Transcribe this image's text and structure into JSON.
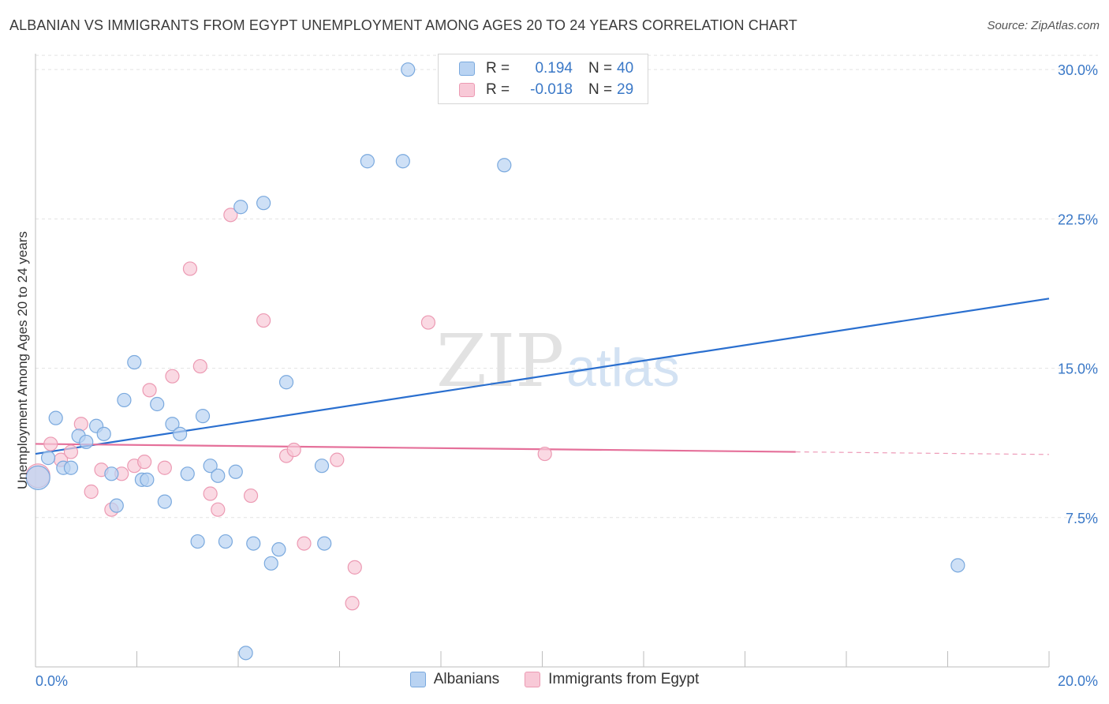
{
  "title": "ALBANIAN VS IMMIGRANTS FROM EGYPT UNEMPLOYMENT AMONG AGES 20 TO 24 YEARS CORRELATION CHART",
  "source": "Source: ZipAtlas.com",
  "watermark": {
    "zip": "ZIP",
    "atlas": "atlas"
  },
  "legend": {
    "rows": [
      {
        "r_label": "R =",
        "r_value": "0.194",
        "n_label": "N =",
        "n_value": "40"
      },
      {
        "r_label": "R =",
        "r_value": "-0.018",
        "n_label": "N =",
        "n_value": "29"
      }
    ]
  },
  "bottom_legend": {
    "series_a": "Albanians",
    "series_b": "Immigrants from Egypt"
  },
  "colors": {
    "albanians_fill": "#b9d3f2",
    "albanians_stroke": "#7aa9de",
    "albanians_line": "#2a6fcf",
    "egypt_fill": "#f8c9d7",
    "egypt_stroke": "#ec9ab3",
    "egypt_line": "#e5709a",
    "tick_text": "#3a78c7"
  },
  "chart_data": {
    "type": "scatter",
    "title": "ALBANIAN VS IMMIGRANTS FROM EGYPT UNEMPLOYMENT AMONG AGES 20 TO 24 YEARS CORRELATION CHART",
    "xlabel": "",
    "ylabel": "Unemployment Among Ages 20 to 24 years",
    "xlim": [
      0,
      20
    ],
    "ylim": [
      0,
      30.8
    ],
    "x_tick_labels": [
      "0.0%",
      "20.0%"
    ],
    "y_ticks": [
      7.5,
      15.0,
      22.5,
      30.0
    ],
    "y_tick_labels": [
      "7.5%",
      "15.0%",
      "22.5%",
      "30.0%"
    ],
    "grid": true,
    "series": [
      {
        "name": "Albanians",
        "points": [
          {
            "x": 0.05,
            "y": 9.5,
            "big": true
          },
          {
            "x": 0.25,
            "y": 10.5
          },
          {
            "x": 0.4,
            "y": 12.5
          },
          {
            "x": 0.55,
            "y": 10.0
          },
          {
            "x": 0.7,
            "y": 10.0
          },
          {
            "x": 0.85,
            "y": 11.6
          },
          {
            "x": 1.0,
            "y": 11.3
          },
          {
            "x": 1.2,
            "y": 12.1
          },
          {
            "x": 1.35,
            "y": 11.7
          },
          {
            "x": 1.5,
            "y": 9.7
          },
          {
            "x": 1.6,
            "y": 8.1
          },
          {
            "x": 1.75,
            "y": 13.4
          },
          {
            "x": 1.95,
            "y": 15.3
          },
          {
            "x": 2.1,
            "y": 9.4
          },
          {
            "x": 2.2,
            "y": 9.4
          },
          {
            "x": 2.4,
            "y": 13.2
          },
          {
            "x": 2.55,
            "y": 8.3
          },
          {
            "x": 2.7,
            "y": 12.2
          },
          {
            "x": 2.85,
            "y": 11.7
          },
          {
            "x": 3.0,
            "y": 9.7
          },
          {
            "x": 3.2,
            "y": 6.3
          },
          {
            "x": 3.3,
            "y": 12.6
          },
          {
            "x": 3.45,
            "y": 10.1
          },
          {
            "x": 3.6,
            "y": 9.6
          },
          {
            "x": 3.75,
            "y": 6.3
          },
          {
            "x": 3.95,
            "y": 9.8
          },
          {
            "x": 4.05,
            "y": 23.1
          },
          {
            "x": 4.15,
            "y": 0.7
          },
          {
            "x": 4.3,
            "y": 6.2
          },
          {
            "x": 4.5,
            "y": 23.3
          },
          {
            "x": 4.65,
            "y": 5.2
          },
          {
            "x": 4.8,
            "y": 5.9
          },
          {
            "x": 4.95,
            "y": 14.3
          },
          {
            "x": 5.65,
            "y": 10.1
          },
          {
            "x": 5.7,
            "y": 6.2
          },
          {
            "x": 6.55,
            "y": 25.4
          },
          {
            "x": 7.25,
            "y": 25.4
          },
          {
            "x": 7.35,
            "y": 30.0
          },
          {
            "x": 9.25,
            "y": 25.2
          },
          {
            "x": 18.2,
            "y": 5.1
          }
        ],
        "trend": {
          "x": [
            0,
            20
          ],
          "y": [
            10.7,
            18.5
          ]
        }
      },
      {
        "name": "Immigrants from Egypt",
        "points": [
          {
            "x": 0.05,
            "y": 9.6,
            "big": true
          },
          {
            "x": 0.3,
            "y": 11.2
          },
          {
            "x": 0.5,
            "y": 10.4
          },
          {
            "x": 0.7,
            "y": 10.8
          },
          {
            "x": 0.9,
            "y": 12.2
          },
          {
            "x": 1.1,
            "y": 8.8
          },
          {
            "x": 1.3,
            "y": 9.9
          },
          {
            "x": 1.5,
            "y": 7.9
          },
          {
            "x": 1.7,
            "y": 9.7
          },
          {
            "x": 1.95,
            "y": 10.1
          },
          {
            "x": 2.15,
            "y": 10.3
          },
          {
            "x": 2.25,
            "y": 13.9
          },
          {
            "x": 2.55,
            "y": 10.0
          },
          {
            "x": 2.7,
            "y": 14.6
          },
          {
            "x": 3.05,
            "y": 20.0
          },
          {
            "x": 3.25,
            "y": 15.1
          },
          {
            "x": 3.45,
            "y": 8.7
          },
          {
            "x": 3.6,
            "y": 7.9
          },
          {
            "x": 3.85,
            "y": 22.7
          },
          {
            "x": 4.25,
            "y": 8.6
          },
          {
            "x": 4.5,
            "y": 17.4
          },
          {
            "x": 4.95,
            "y": 10.6
          },
          {
            "x": 5.1,
            "y": 10.9
          },
          {
            "x": 5.3,
            "y": 6.2
          },
          {
            "x": 5.95,
            "y": 10.4
          },
          {
            "x": 6.3,
            "y": 5.0
          },
          {
            "x": 6.25,
            "y": 3.2
          },
          {
            "x": 7.75,
            "y": 17.3
          },
          {
            "x": 10.05,
            "y": 10.7
          }
        ],
        "trend": {
          "x": [
            0,
            15
          ],
          "y": [
            11.2,
            10.8
          ],
          "dashed_to": [
            20,
            10.67
          ]
        }
      }
    ]
  }
}
